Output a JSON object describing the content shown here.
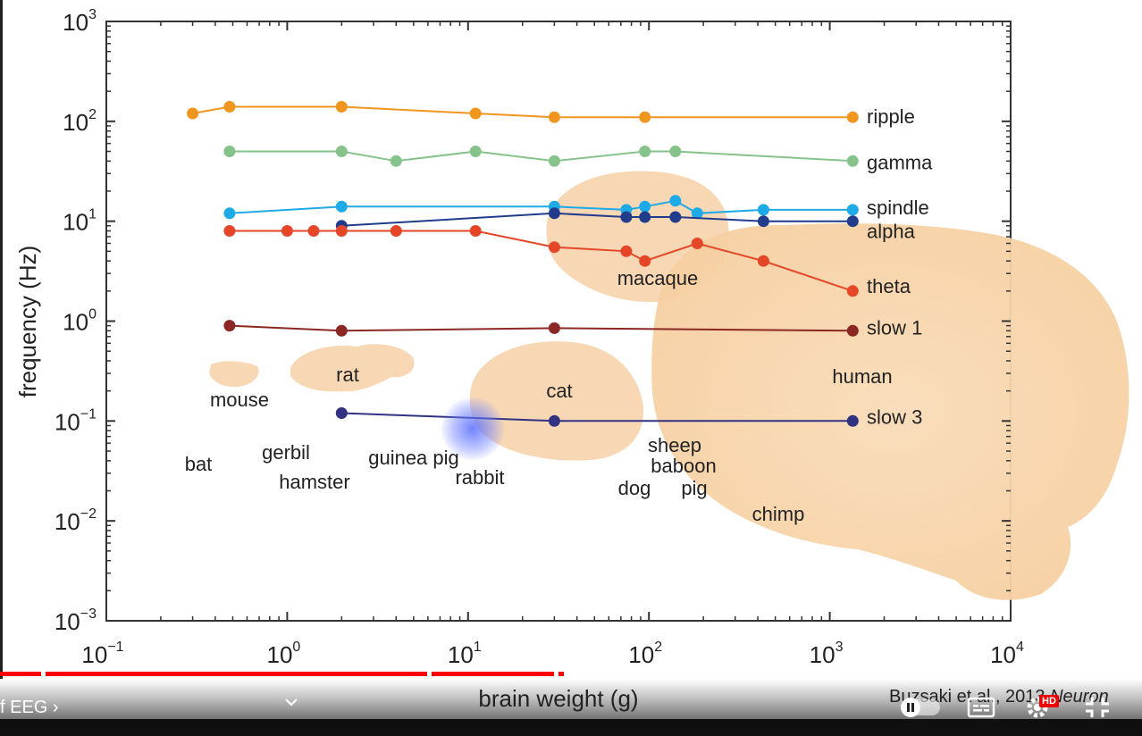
{
  "player": {
    "chapter_label": "f EEG ›",
    "credit_text": "Buzsaki et al., 2013 ",
    "credit_journal": "Neuron",
    "hd_badge": "HD",
    "icons": [
      "chevron-down-icon",
      "pause-toggle-icon",
      "subtitles-icon",
      "settings-icon",
      "exit-fullscreen-icon"
    ]
  },
  "chart_data": {
    "type": "line",
    "xlabel": "brain weight (g)",
    "ylabel": "frequency (Hz)",
    "xscale": "log",
    "yscale": "log",
    "xlim": [
      0.1,
      10000
    ],
    "ylim": [
      0.001,
      1000
    ],
    "xticks": [
      {
        "base": "10",
        "exp": "−1"
      },
      {
        "base": "10",
        "exp": "0"
      },
      {
        "base": "10",
        "exp": "1"
      },
      {
        "base": "10",
        "exp": "2"
      },
      {
        "base": "10",
        "exp": "3"
      },
      {
        "base": "10",
        "exp": "4"
      }
    ],
    "yticks": [
      {
        "base": "10",
        "exp": "3"
      },
      {
        "base": "10",
        "exp": "2"
      },
      {
        "base": "10",
        "exp": "1"
      },
      {
        "base": "10",
        "exp": "0"
      },
      {
        "base": "10",
        "exp": "−1"
      },
      {
        "base": "10",
        "exp": "−2"
      },
      {
        "base": "10",
        "exp": "−3"
      }
    ],
    "series": [
      {
        "name": "ripple",
        "color": "#f0961e",
        "x": [
          0.3,
          0.48,
          2.0,
          11,
          30,
          95,
          1340
        ],
        "y": [
          120,
          140,
          140,
          120,
          110,
          110,
          110
        ]
      },
      {
        "name": "gamma",
        "color": "#86c38a",
        "x": [
          0.48,
          2.0,
          4.0,
          11,
          30,
          95,
          140,
          1340
        ],
        "y": [
          50,
          50,
          40,
          50,
          40,
          50,
          50,
          40
        ]
      },
      {
        "name": "spindle",
        "color": "#1eaae6",
        "x": [
          0.48,
          2.0,
          30,
          75,
          95,
          140,
          185,
          430,
          1340
        ],
        "y": [
          12,
          14,
          14,
          13,
          14,
          16,
          12,
          13,
          13
        ]
      },
      {
        "name": "alpha",
        "color": "#223c8c",
        "x": [
          2.0,
          30,
          75,
          95,
          140,
          430,
          1340
        ],
        "y": [
          9,
          12,
          11,
          11,
          11,
          10,
          10
        ]
      },
      {
        "name": "theta",
        "color": "#e64628",
        "x": [
          0.48,
          1.0,
          1.4,
          2.0,
          4.0,
          11,
          30,
          75,
          95,
          185,
          430,
          1340
        ],
        "y": [
          8,
          8,
          8,
          8,
          8,
          8,
          5.5,
          5,
          4,
          6,
          4,
          2
        ]
      },
      {
        "name": "slow 1",
        "color": "#8c2823",
        "x": [
          0.48,
          2.0,
          30,
          1340
        ],
        "y": [
          0.9,
          0.8,
          0.85,
          0.8
        ]
      },
      {
        "name": "slow 3",
        "color": "#323282",
        "x": [
          2.0,
          30,
          1340
        ],
        "y": [
          0.12,
          0.1,
          0.1
        ]
      }
    ],
    "series_label_colors": {
      "ripple": "#f0961e",
      "gamma": "#3cac46",
      "spindle": "#1eaae6",
      "alpha": "#1e55a0",
      "theta": "#dc2828",
      "slow 1": "#8c2823",
      "slow 3": "#1e55a0"
    },
    "animal_labels": [
      "bat",
      "mouse",
      "gerbil",
      "hamster",
      "rat",
      "guinea pig",
      "rabbit",
      "cat",
      "sheep",
      "baboon",
      "dog",
      "pig",
      "macaque",
      "chimp",
      "human"
    ]
  }
}
